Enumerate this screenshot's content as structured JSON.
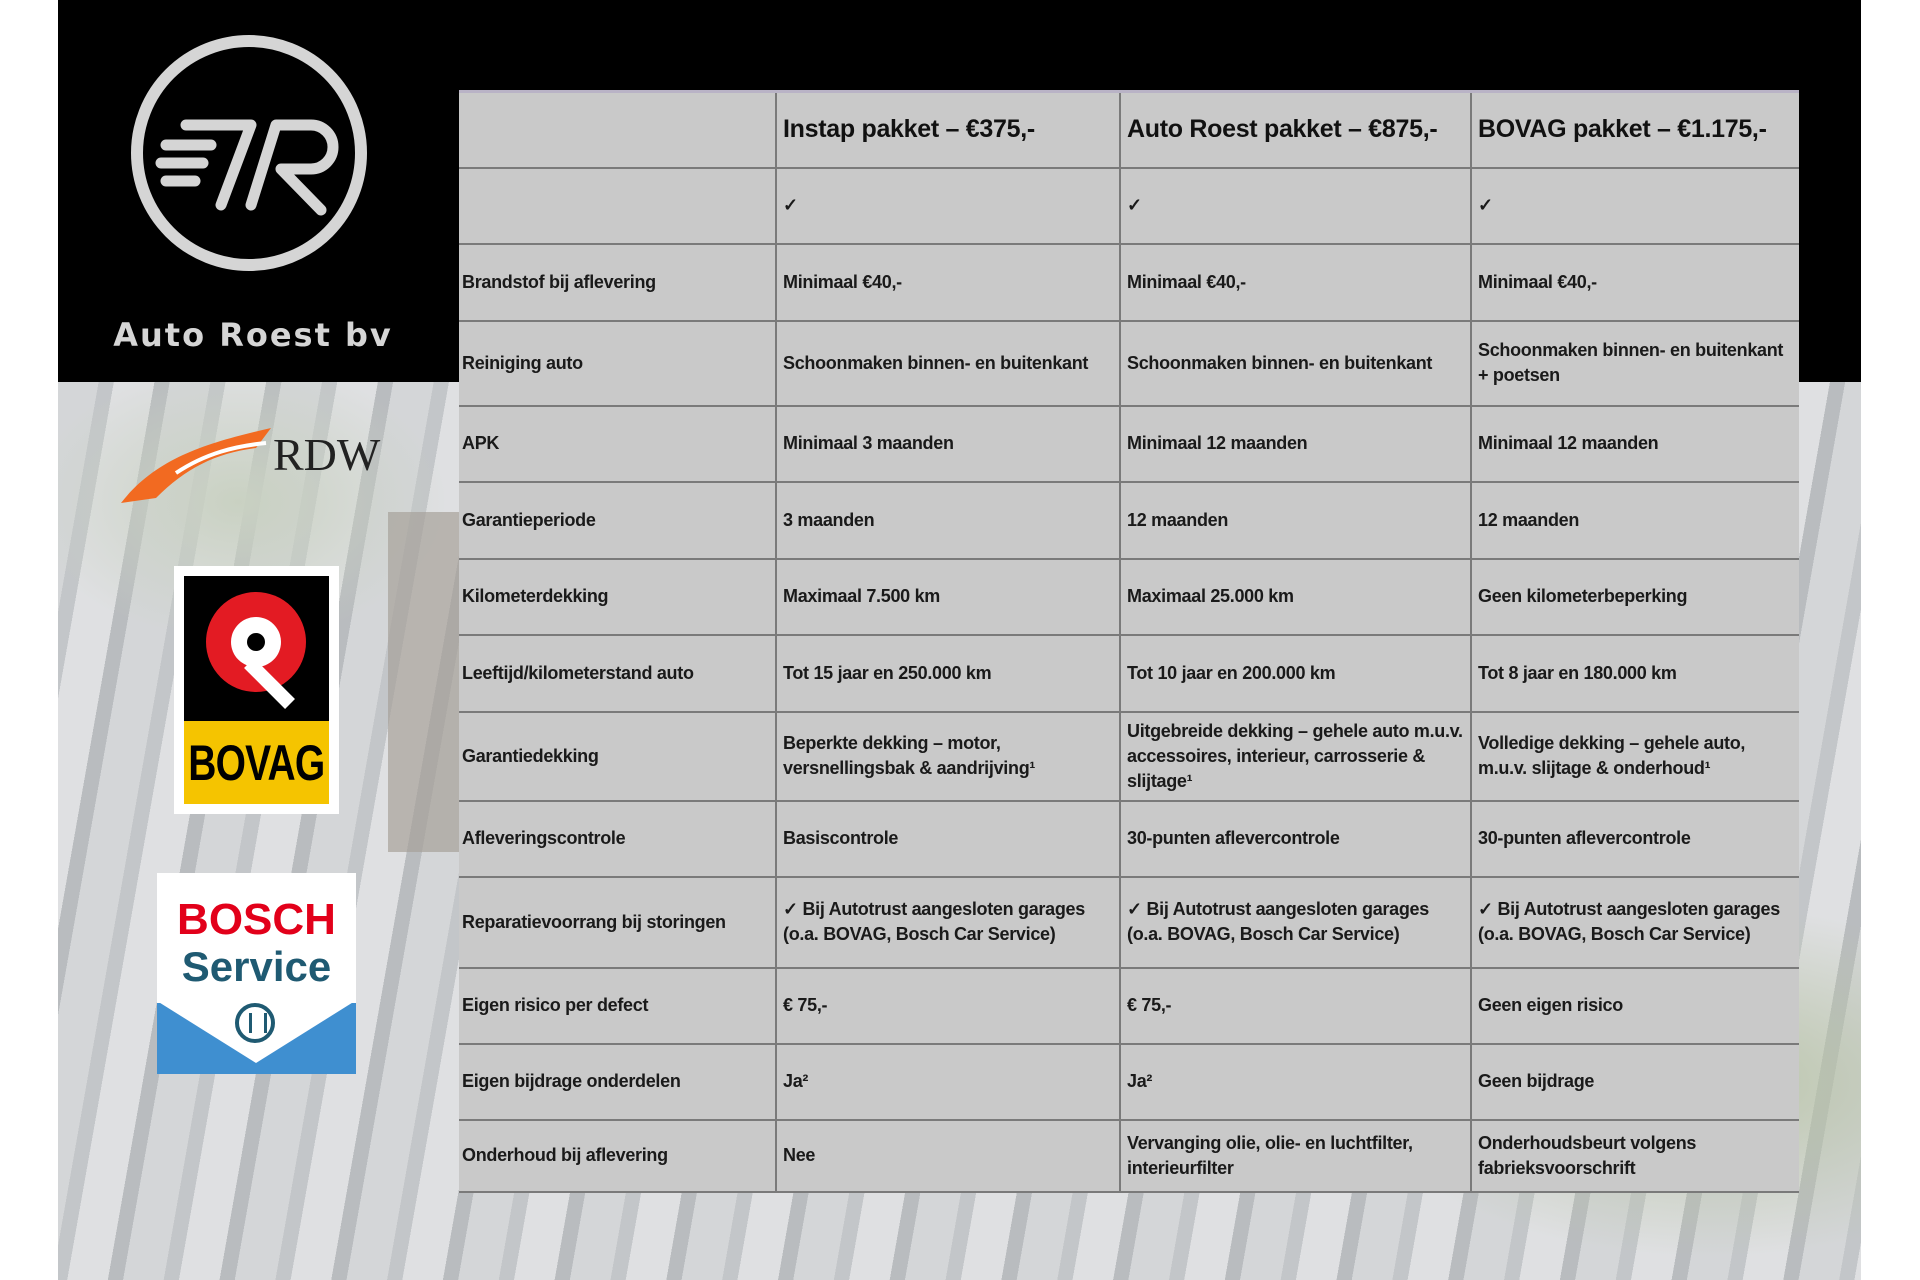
{
  "brand": {
    "name": "Auto Roest bv",
    "logo_letters": "AR"
  },
  "logos": {
    "rdw": "RDW",
    "bovag": "BOVAG",
    "bosch_line1": "BOSCH",
    "bosch_line2": "Service"
  },
  "table": {
    "headers": [
      "",
      "Instap pakket – €375,-",
      "Auto Roest pakket – €875,-",
      "BOVAG pakket – €1.175,-"
    ],
    "rows": [
      {
        "label": "",
        "values": [
          "✓",
          "✓",
          "✓"
        ]
      },
      {
        "label": "Brandstof bij aflevering",
        "values": [
          "Minimaal €40,-",
          "Minimaal €40,-",
          "Minimaal €40,-"
        ]
      },
      {
        "label": "Reiniging auto",
        "values": [
          "Schoonmaken binnen- en buitenkant",
          "Schoonmaken binnen- en buitenkant",
          "Schoonmaken binnen- en buitenkant + poetsen"
        ]
      },
      {
        "label": "APK",
        "values": [
          "Minimaal 3 maanden",
          "Minimaal 12 maanden",
          "Minimaal 12 maanden"
        ]
      },
      {
        "label": "Garantieperiode",
        "values": [
          "3 maanden",
          "12 maanden",
          "12 maanden"
        ]
      },
      {
        "label": "Kilometerdekking",
        "values": [
          "Maximaal 7.500 km",
          "Maximaal 25.000 km",
          "Geen kilometerbeperking"
        ]
      },
      {
        "label": "Leeftijd/kilometerstand auto",
        "values": [
          "Tot 15 jaar en 250.000 km",
          "Tot 10 jaar en 200.000 km",
          "Tot 8 jaar en 180.000 km"
        ]
      },
      {
        "label": "Garantiedekking",
        "values": [
          "Beperkte dekking – motor, versnellingsbak & aandrijving¹",
          "Uitgebreide dekking – gehele auto m.u.v. accessoires, interieur, carrosserie & slijtage¹",
          "Volledige dekking – gehele auto, m.u.v. slijtage & onderhoud¹"
        ]
      },
      {
        "label": "Afleveringscontrole",
        "values": [
          "Basiscontrole",
          "30-punten aflevercontrole",
          "30-punten aflevercontrole"
        ]
      },
      {
        "label": "Reparatievoorrang bij storingen",
        "values": [
          "✓ Bij Autotrust aangesloten garages (o.a. BOVAG, Bosch Car Service)",
          "✓ Bij Autotrust aangesloten garages (o.a. BOVAG, Bosch Car Service)",
          "✓ Bij Autotrust aangesloten garages (o.a. BOVAG, Bosch Car Service)"
        ]
      },
      {
        "label": "Eigen risico per defect",
        "values": [
          "€ 75,-",
          "€ 75,-",
          "Geen eigen risico"
        ]
      },
      {
        "label": "Eigen bijdrage onderdelen",
        "values": [
          "Ja²",
          "Ja²",
          "Geen bijdrage"
        ]
      },
      {
        "label": "Onderhoud bij aflevering",
        "values": [
          "Nee",
          "Vervanging olie, olie- en luchtfilter, interieurfilter",
          "Onderhoudsbeurt volgens fabrieksvoorschrift"
        ]
      }
    ]
  }
}
